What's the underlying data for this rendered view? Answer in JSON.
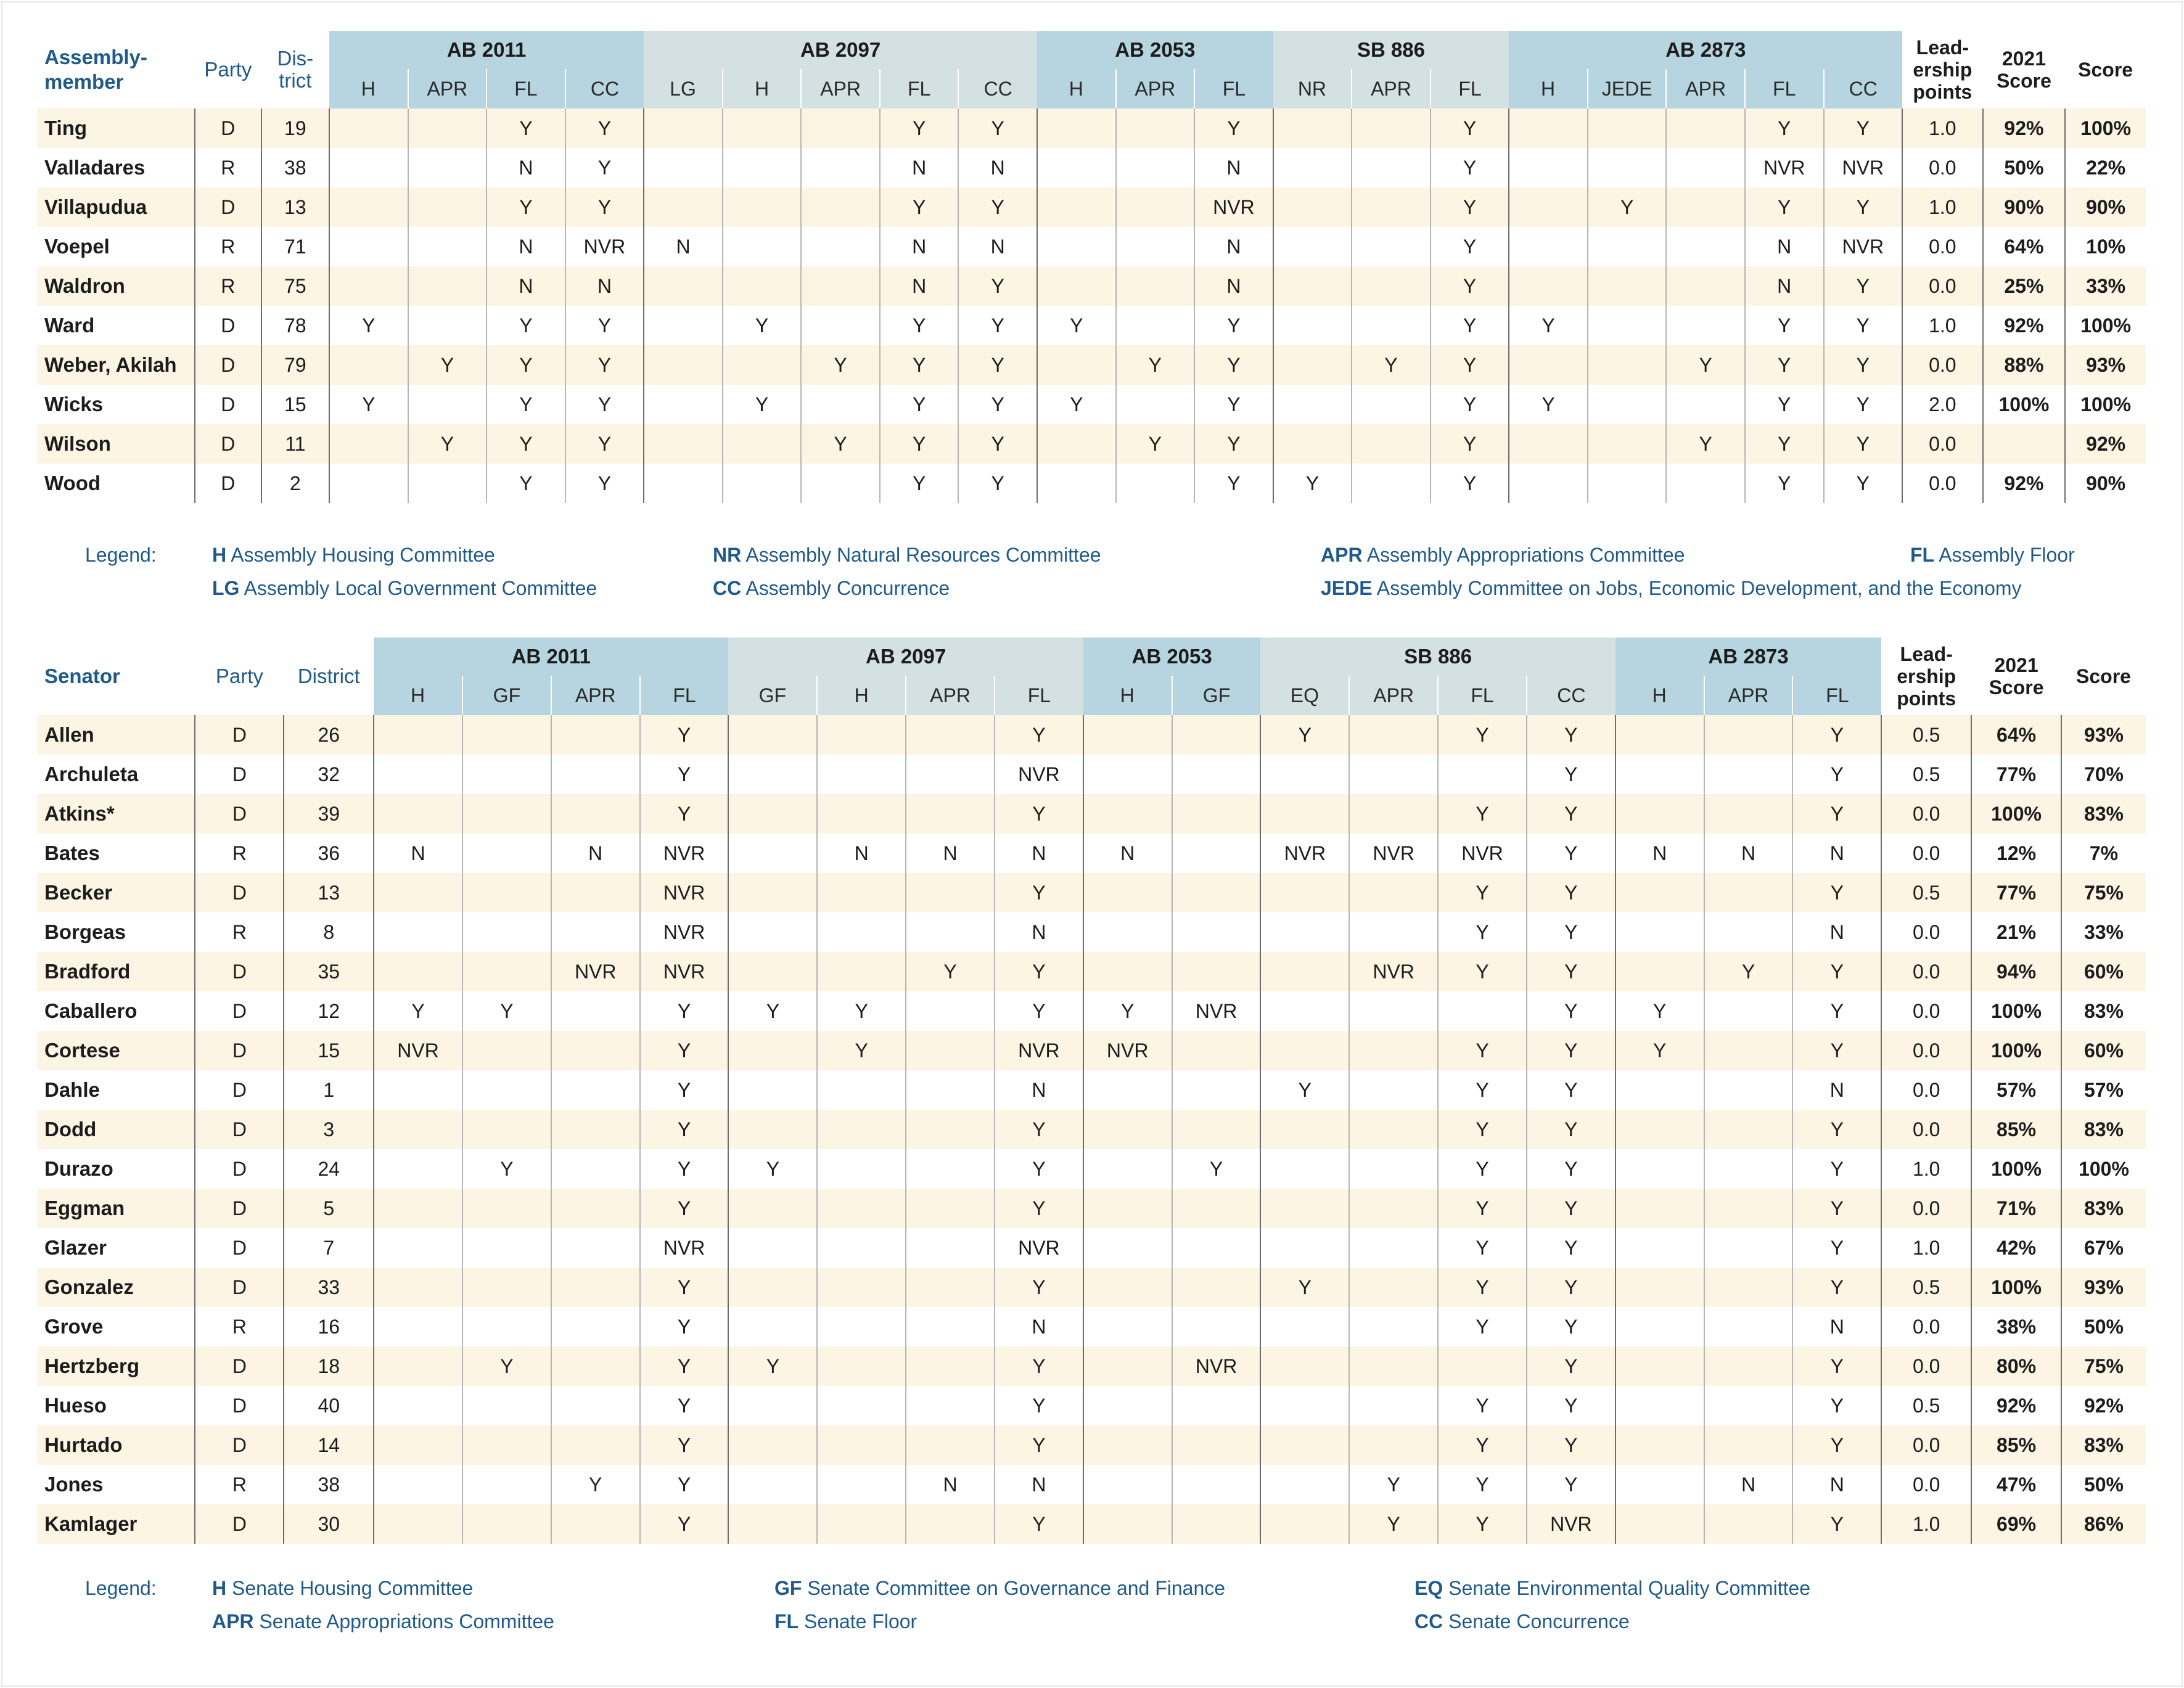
{
  "assembly": {
    "header": {
      "name_col": "Assembly-member",
      "party_col": "Party",
      "district_col": "Dis-trict",
      "leadership_col": "Lead-ership points",
      "prev_score_col": "2021 Score",
      "score_col": "Score"
    },
    "bills": [
      {
        "name": "AB 2011",
        "subs": [
          "H",
          "APR",
          "FL",
          "CC"
        ]
      },
      {
        "name": "AB 2097",
        "subs": [
          "LG",
          "H",
          "APR",
          "FL",
          "CC"
        ]
      },
      {
        "name": "AB 2053",
        "subs": [
          "H",
          "APR",
          "FL"
        ]
      },
      {
        "name": "SB 886",
        "subs": [
          "NR",
          "APR",
          "FL"
        ]
      },
      {
        "name": "AB 2873",
        "subs": [
          "H",
          "JEDE",
          "APR",
          "FL",
          "CC"
        ]
      }
    ],
    "rows": [
      {
        "name": "Ting",
        "party": "D",
        "district": "19",
        "votes": [
          "",
          "",
          "Y",
          "Y",
          "",
          "",
          "",
          "Y",
          "Y",
          "",
          "",
          "Y",
          "",
          "",
          "Y",
          "",
          "",
          "",
          "Y",
          "Y"
        ],
        "leadership": "1.0",
        "prev": "92%",
        "score": "100%"
      },
      {
        "name": "Valladares",
        "party": "R",
        "district": "38",
        "votes": [
          "",
          "",
          "N",
          "Y",
          "",
          "",
          "",
          "N",
          "N",
          "",
          "",
          "N",
          "",
          "",
          "Y",
          "",
          "",
          "",
          "NVR",
          "NVR"
        ],
        "leadership": "0.0",
        "prev": "50%",
        "score": "22%"
      },
      {
        "name": "Villapudua",
        "party": "D",
        "district": "13",
        "votes": [
          "",
          "",
          "Y",
          "Y",
          "",
          "",
          "",
          "Y",
          "Y",
          "",
          "",
          "NVR",
          "",
          "",
          "Y",
          "",
          "Y",
          "",
          "Y",
          "Y"
        ],
        "leadership": "1.0",
        "prev": "90%",
        "score": "90%"
      },
      {
        "name": "Voepel",
        "party": "R",
        "district": "71",
        "votes": [
          "",
          "",
          "N",
          "NVR",
          "N",
          "",
          "",
          "N",
          "N",
          "",
          "",
          "N",
          "",
          "",
          "Y",
          "",
          "",
          "",
          "N",
          "NVR"
        ],
        "leadership": "0.0",
        "prev": "64%",
        "score": "10%"
      },
      {
        "name": "Waldron",
        "party": "R",
        "district": "75",
        "votes": [
          "",
          "",
          "N",
          "N",
          "",
          "",
          "",
          "N",
          "Y",
          "",
          "",
          "N",
          "",
          "",
          "Y",
          "",
          "",
          "",
          "N",
          "Y"
        ],
        "leadership": "0.0",
        "prev": "25%",
        "score": "33%"
      },
      {
        "name": "Ward",
        "party": "D",
        "district": "78",
        "votes": [
          "Y",
          "",
          "Y",
          "Y",
          "",
          "Y",
          "",
          "Y",
          "Y",
          "Y",
          "",
          "Y",
          "",
          "",
          "Y",
          "Y",
          "",
          "",
          "Y",
          "Y"
        ],
        "leadership": "1.0",
        "prev": "92%",
        "score": "100%"
      },
      {
        "name": "Weber, Akilah",
        "party": "D",
        "district": "79",
        "votes": [
          "",
          "Y",
          "Y",
          "Y",
          "",
          "",
          "Y",
          "Y",
          "Y",
          "",
          "Y",
          "Y",
          "",
          "Y",
          "Y",
          "",
          "",
          "Y",
          "Y",
          "Y"
        ],
        "leadership": "0.0",
        "prev": "88%",
        "score": "93%"
      },
      {
        "name": "Wicks",
        "party": "D",
        "district": "15",
        "votes": [
          "Y",
          "",
          "Y",
          "Y",
          "",
          "Y",
          "",
          "Y",
          "Y",
          "Y",
          "",
          "Y",
          "",
          "",
          "Y",
          "Y",
          "",
          "",
          "Y",
          "Y"
        ],
        "leadership": "2.0",
        "prev": "100%",
        "score": "100%"
      },
      {
        "name": "Wilson",
        "party": "D",
        "district": "11",
        "votes": [
          "",
          "Y",
          "Y",
          "Y",
          "",
          "",
          "Y",
          "Y",
          "Y",
          "",
          "Y",
          "Y",
          "",
          "",
          "Y",
          "",
          "",
          "Y",
          "Y",
          "Y"
        ],
        "leadership": "0.0",
        "prev": "",
        "score": "92%"
      },
      {
        "name": "Wood",
        "party": "D",
        "district": "2",
        "votes": [
          "",
          "",
          "Y",
          "Y",
          "",
          "",
          "",
          "Y",
          "Y",
          "",
          "",
          "Y",
          "Y",
          "",
          "Y",
          "",
          "",
          "",
          "Y",
          "Y"
        ],
        "leadership": "0.0",
        "prev": "92%",
        "score": "90%"
      }
    ],
    "legend": {
      "title": "Legend:",
      "items": [
        {
          "abbr": "H",
          "text": "Assembly Housing Committee"
        },
        {
          "abbr": "NR",
          "text": "Assembly Natural Resources Committee"
        },
        {
          "abbr": "APR",
          "text": "Assembly Appropriations Committee"
        },
        {
          "abbr": "FL",
          "text": "Assembly Floor"
        },
        {
          "abbr": "LG",
          "text": "Assembly Local Government Committee"
        },
        {
          "abbr": "CC",
          "text": "Assembly Concurrence"
        },
        {
          "abbr": "JEDE",
          "text": "Assembly Committee on Jobs, Economic Development, and the Economy"
        }
      ]
    }
  },
  "senate": {
    "header": {
      "name_col": "Senator",
      "party_col": "Party",
      "district_col": "District",
      "leadership_col": "Lead-ership points",
      "prev_score_col": "2021 Score",
      "score_col": "Score"
    },
    "bills": [
      {
        "name": "AB 2011",
        "subs": [
          "H",
          "GF",
          "APR",
          "FL"
        ]
      },
      {
        "name": "AB 2097",
        "subs": [
          "GF",
          "H",
          "APR",
          "FL"
        ]
      },
      {
        "name": "AB 2053",
        "subs": [
          "H",
          "GF"
        ]
      },
      {
        "name": "SB 886",
        "subs": [
          "EQ",
          "APR",
          "FL",
          "CC"
        ]
      },
      {
        "name": "AB 2873",
        "subs": [
          "H",
          "APR",
          "FL"
        ]
      }
    ],
    "rows": [
      {
        "name": "Allen",
        "party": "D",
        "district": "26",
        "votes": [
          "",
          "",
          "",
          "Y",
          "",
          "",
          "",
          "Y",
          "",
          "",
          "Y",
          "",
          "Y",
          "Y",
          "",
          "",
          "Y"
        ],
        "leadership": "0.5",
        "prev": "64%",
        "score": "93%"
      },
      {
        "name": "Archuleta",
        "party": "D",
        "district": "32",
        "votes": [
          "",
          "",
          "",
          "Y",
          "",
          "",
          "",
          "NVR",
          "",
          "",
          "",
          "",
          "",
          "Y",
          "",
          "",
          "Y"
        ],
        "leadership": "0.5",
        "prev": "77%",
        "score": "70%"
      },
      {
        "name": "Atkins*",
        "party": "D",
        "district": "39",
        "votes": [
          "",
          "",
          "",
          "Y",
          "",
          "",
          "",
          "Y",
          "",
          "",
          "",
          "",
          "Y",
          "Y",
          "",
          "",
          "Y"
        ],
        "leadership": "0.0",
        "prev": "100%",
        "score": "83%"
      },
      {
        "name": "Bates",
        "party": "R",
        "district": "36",
        "votes": [
          "N",
          "",
          "N",
          "NVR",
          "",
          "N",
          "N",
          "N",
          "N",
          "",
          "NVR",
          "NVR",
          "NVR",
          "Y",
          "N",
          "N",
          "N"
        ],
        "leadership": "0.0",
        "prev": "12%",
        "score": "7%"
      },
      {
        "name": "Becker",
        "party": "D",
        "district": "13",
        "votes": [
          "",
          "",
          "",
          "NVR",
          "",
          "",
          "",
          "Y",
          "",
          "",
          "",
          "",
          "Y",
          "Y",
          "",
          "",
          "Y"
        ],
        "leadership": "0.5",
        "prev": "77%",
        "score": "75%"
      },
      {
        "name": "Borgeas",
        "party": "R",
        "district": "8",
        "votes": [
          "",
          "",
          "",
          "NVR",
          "",
          "",
          "",
          "N",
          "",
          "",
          "",
          "",
          "Y",
          "Y",
          "",
          "",
          "N"
        ],
        "leadership": "0.0",
        "prev": "21%",
        "score": "33%"
      },
      {
        "name": "Bradford",
        "party": "D",
        "district": "35",
        "votes": [
          "",
          "",
          "NVR",
          "NVR",
          "",
          "",
          "Y",
          "Y",
          "",
          "",
          "",
          "NVR",
          "Y",
          "Y",
          "",
          "Y",
          "Y"
        ],
        "leadership": "0.0",
        "prev": "94%",
        "score": "60%"
      },
      {
        "name": "Caballero",
        "party": "D",
        "district": "12",
        "votes": [
          "Y",
          "Y",
          "",
          "Y",
          "Y",
          "Y",
          "",
          "Y",
          "Y",
          "NVR",
          "",
          "",
          "",
          "Y",
          "Y",
          "",
          "Y"
        ],
        "leadership": "0.0",
        "prev": "100%",
        "score": "83%"
      },
      {
        "name": "Cortese",
        "party": "D",
        "district": "15",
        "votes": [
          "NVR",
          "",
          "",
          "Y",
          "",
          "Y",
          "",
          "NVR",
          "NVR",
          "",
          "",
          "",
          "Y",
          "Y",
          "Y",
          "",
          "Y"
        ],
        "leadership": "0.0",
        "prev": "100%",
        "score": "60%"
      },
      {
        "name": "Dahle",
        "party": "D",
        "district": "1",
        "votes": [
          "",
          "",
          "",
          "Y",
          "",
          "",
          "",
          "N",
          "",
          "",
          "Y",
          "",
          "Y",
          "Y",
          "",
          "",
          "N"
        ],
        "leadership": "0.0",
        "prev": "57%",
        "score": "57%"
      },
      {
        "name": "Dodd",
        "party": "D",
        "district": "3",
        "votes": [
          "",
          "",
          "",
          "Y",
          "",
          "",
          "",
          "Y",
          "",
          "",
          "",
          "",
          "Y",
          "Y",
          "",
          "",
          "Y"
        ],
        "leadership": "0.0",
        "prev": "85%",
        "score": "83%"
      },
      {
        "name": "Durazo",
        "party": "D",
        "district": "24",
        "votes": [
          "",
          "Y",
          "",
          "Y",
          "Y",
          "",
          "",
          "Y",
          "",
          "Y",
          "",
          "",
          "Y",
          "Y",
          "",
          "",
          "Y"
        ],
        "leadership": "1.0",
        "prev": "100%",
        "score": "100%"
      },
      {
        "name": "Eggman",
        "party": "D",
        "district": "5",
        "votes": [
          "",
          "",
          "",
          "Y",
          "",
          "",
          "",
          "Y",
          "",
          "",
          "",
          "",
          "Y",
          "Y",
          "",
          "",
          "Y"
        ],
        "leadership": "0.0",
        "prev": "71%",
        "score": "83%"
      },
      {
        "name": "Glazer",
        "party": "D",
        "district": "7",
        "votes": [
          "",
          "",
          "",
          "NVR",
          "",
          "",
          "",
          "NVR",
          "",
          "",
          "",
          "",
          "Y",
          "Y",
          "",
          "",
          "Y"
        ],
        "leadership": "1.0",
        "prev": "42%",
        "score": "67%"
      },
      {
        "name": "Gonzalez",
        "party": "D",
        "district": "33",
        "votes": [
          "",
          "",
          "",
          "Y",
          "",
          "",
          "",
          "Y",
          "",
          "",
          "Y",
          "",
          "Y",
          "Y",
          "",
          "",
          "Y"
        ],
        "leadership": "0.5",
        "prev": "100%",
        "score": "93%"
      },
      {
        "name": "Grove",
        "party": "R",
        "district": "16",
        "votes": [
          "",
          "",
          "",
          "Y",
          "",
          "",
          "",
          "N",
          "",
          "",
          "",
          "",
          "Y",
          "Y",
          "",
          "",
          "N"
        ],
        "leadership": "0.0",
        "prev": "38%",
        "score": "50%"
      },
      {
        "name": "Hertzberg",
        "party": "D",
        "district": "18",
        "votes": [
          "",
          "Y",
          "",
          "Y",
          "Y",
          "",
          "",
          "Y",
          "",
          "NVR",
          "",
          "",
          "",
          "Y",
          "",
          "",
          "Y"
        ],
        "leadership": "0.0",
        "prev": "80%",
        "score": "75%"
      },
      {
        "name": "Hueso",
        "party": "D",
        "district": "40",
        "votes": [
          "",
          "",
          "",
          "Y",
          "",
          "",
          "",
          "Y",
          "",
          "",
          "",
          "",
          "Y",
          "Y",
          "",
          "",
          "Y"
        ],
        "leadership": "0.5",
        "prev": "92%",
        "score": "92%"
      },
      {
        "name": "Hurtado",
        "party": "D",
        "district": "14",
        "votes": [
          "",
          "",
          "",
          "Y",
          "",
          "",
          "",
          "Y",
          "",
          "",
          "",
          "",
          "Y",
          "Y",
          "",
          "",
          "Y"
        ],
        "leadership": "0.0",
        "prev": "85%",
        "score": "83%"
      },
      {
        "name": "Jones",
        "party": "R",
        "district": "38",
        "votes": [
          "",
          "",
          "Y",
          "Y",
          "",
          "",
          "N",
          "N",
          "",
          "",
          "",
          "Y",
          "Y",
          "Y",
          "",
          "N",
          "N"
        ],
        "leadership": "0.0",
        "prev": "47%",
        "score": "50%"
      },
      {
        "name": "Kamlager",
        "party": "D",
        "district": "30",
        "votes": [
          "",
          "",
          "",
          "Y",
          "",
          "",
          "",
          "Y",
          "",
          "",
          "",
          "Y",
          "Y",
          "NVR",
          "",
          "",
          "Y"
        ],
        "leadership": "1.0",
        "prev": "69%",
        "score": "86%"
      }
    ],
    "legend": {
      "title": "Legend:",
      "items": [
        {
          "abbr": "H",
          "text": "Senate Housing Committee"
        },
        {
          "abbr": "GF",
          "text": "Senate Committee on Governance and Finance"
        },
        {
          "abbr": "EQ",
          "text": "Senate Environmental Quality Committee"
        },
        {
          "abbr": "APR",
          "text": "Senate Appropriations Committee"
        },
        {
          "abbr": "FL",
          "text": "Senate Floor"
        },
        {
          "abbr": "CC",
          "text": "Senate Concurrence"
        }
      ]
    }
  }
}
